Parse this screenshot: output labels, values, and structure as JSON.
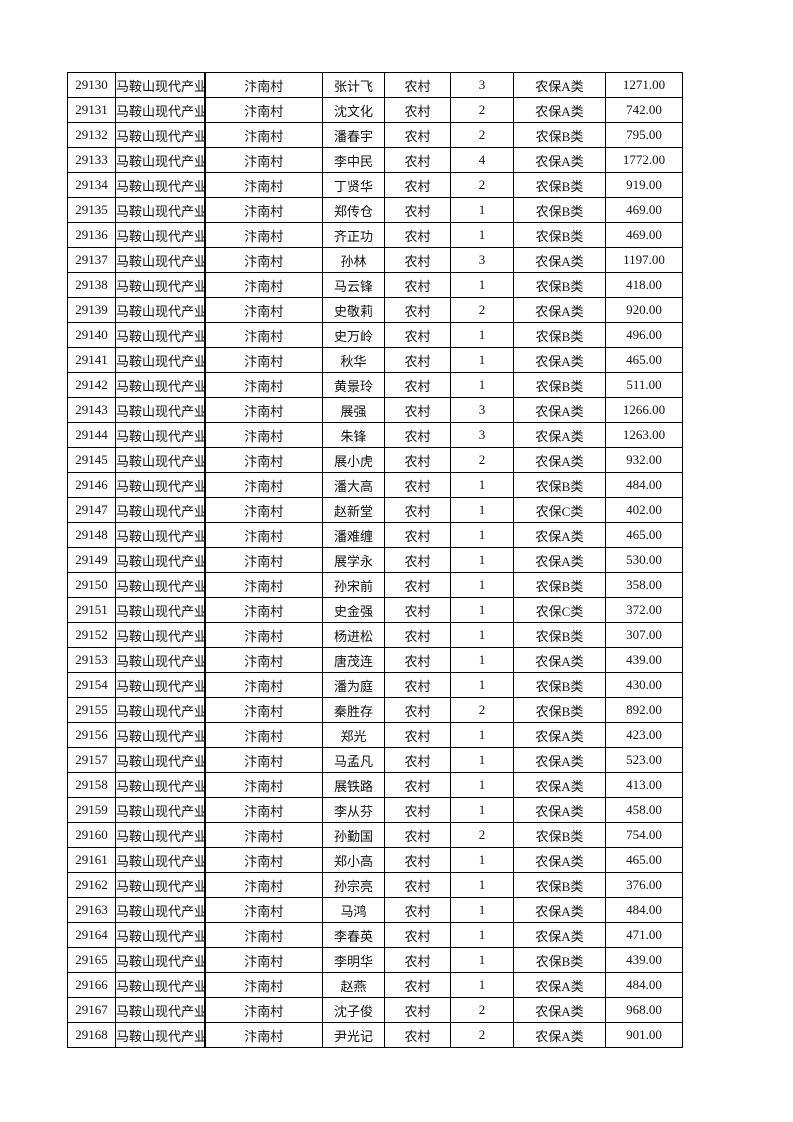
{
  "table": {
    "rows": [
      [
        29130,
        "马鞍山现代产业",
        "汴南村",
        "张计飞",
        "农村",
        3,
        "农保A类",
        "1271.00"
      ],
      [
        29131,
        "马鞍山现代产业",
        "汴南村",
        "沈文化",
        "农村",
        2,
        "农保A类",
        "742.00"
      ],
      [
        29132,
        "马鞍山现代产业",
        "汴南村",
        "潘春宇",
        "农村",
        2,
        "农保B类",
        "795.00"
      ],
      [
        29133,
        "马鞍山现代产业",
        "汴南村",
        "李中民",
        "农村",
        4,
        "农保A类",
        "1772.00"
      ],
      [
        29134,
        "马鞍山现代产业",
        "汴南村",
        "丁贤华",
        "农村",
        2,
        "农保B类",
        "919.00"
      ],
      [
        29135,
        "马鞍山现代产业",
        "汴南村",
        "郑传仓",
        "农村",
        1,
        "农保B类",
        "469.00"
      ],
      [
        29136,
        "马鞍山现代产业",
        "汴南村",
        "齐正功",
        "农村",
        1,
        "农保B类",
        "469.00"
      ],
      [
        29137,
        "马鞍山现代产业",
        "汴南村",
        "孙林",
        "农村",
        3,
        "农保A类",
        "1197.00"
      ],
      [
        29138,
        "马鞍山现代产业",
        "汴南村",
        "马云锋",
        "农村",
        1,
        "农保B类",
        "418.00"
      ],
      [
        29139,
        "马鞍山现代产业",
        "汴南村",
        "史敬莉",
        "农村",
        2,
        "农保A类",
        "920.00"
      ],
      [
        29140,
        "马鞍山现代产业",
        "汴南村",
        "史万岭",
        "农村",
        1,
        "农保B类",
        "496.00"
      ],
      [
        29141,
        "马鞍山现代产业",
        "汴南村",
        "秋华",
        "农村",
        1,
        "农保A类",
        "465.00"
      ],
      [
        29142,
        "马鞍山现代产业",
        "汴南村",
        "黄景玲",
        "农村",
        1,
        "农保B类",
        "511.00"
      ],
      [
        29143,
        "马鞍山现代产业",
        "汴南村",
        "展强",
        "农村",
        3,
        "农保A类",
        "1266.00"
      ],
      [
        29144,
        "马鞍山现代产业",
        "汴南村",
        "朱锋",
        "农村",
        3,
        "农保A类",
        "1263.00"
      ],
      [
        29145,
        "马鞍山现代产业",
        "汴南村",
        "展小虎",
        "农村",
        2,
        "农保A类",
        "932.00"
      ],
      [
        29146,
        "马鞍山现代产业",
        "汴南村",
        "潘大高",
        "农村",
        1,
        "农保B类",
        "484.00"
      ],
      [
        29147,
        "马鞍山现代产业",
        "汴南村",
        "赵新堂",
        "农村",
        1,
        "农保C类",
        "402.00"
      ],
      [
        29148,
        "马鞍山现代产业",
        "汴南村",
        "潘难缠",
        "农村",
        1,
        "农保A类",
        "465.00"
      ],
      [
        29149,
        "马鞍山现代产业",
        "汴南村",
        "展学永",
        "农村",
        1,
        "农保A类",
        "530.00"
      ],
      [
        29150,
        "马鞍山现代产业",
        "汴南村",
        "孙宋前",
        "农村",
        1,
        "农保B类",
        "358.00"
      ],
      [
        29151,
        "马鞍山现代产业",
        "汴南村",
        "史金强",
        "农村",
        1,
        "农保C类",
        "372.00"
      ],
      [
        29152,
        "马鞍山现代产业",
        "汴南村",
        "杨进松",
        "农村",
        1,
        "农保B类",
        "307.00"
      ],
      [
        29153,
        "马鞍山现代产业",
        "汴南村",
        "唐茂连",
        "农村",
        1,
        "农保A类",
        "439.00"
      ],
      [
        29154,
        "马鞍山现代产业",
        "汴南村",
        "潘为庭",
        "农村",
        1,
        "农保B类",
        "430.00"
      ],
      [
        29155,
        "马鞍山现代产业",
        "汴南村",
        "秦胜存",
        "农村",
        2,
        "农保B类",
        "892.00"
      ],
      [
        29156,
        "马鞍山现代产业",
        "汴南村",
        "郑光",
        "农村",
        1,
        "农保A类",
        "423.00"
      ],
      [
        29157,
        "马鞍山现代产业",
        "汴南村",
        "马孟凡",
        "农村",
        1,
        "农保A类",
        "523.00"
      ],
      [
        29158,
        "马鞍山现代产业",
        "汴南村",
        "展铁路",
        "农村",
        1,
        "农保A类",
        "413.00"
      ],
      [
        29159,
        "马鞍山现代产业",
        "汴南村",
        "李从芬",
        "农村",
        1,
        "农保A类",
        "458.00"
      ],
      [
        29160,
        "马鞍山现代产业",
        "汴南村",
        "孙勤国",
        "农村",
        2,
        "农保B类",
        "754.00"
      ],
      [
        29161,
        "马鞍山现代产业",
        "汴南村",
        "郑小高",
        "农村",
        1,
        "农保A类",
        "465.00"
      ],
      [
        29162,
        "马鞍山现代产业",
        "汴南村",
        "孙宗亮",
        "农村",
        1,
        "农保B类",
        "376.00"
      ],
      [
        29163,
        "马鞍山现代产业",
        "汴南村",
        "马鸿",
        "农村",
        1,
        "农保A类",
        "484.00"
      ],
      [
        29164,
        "马鞍山现代产业",
        "汴南村",
        "李春英",
        "农村",
        1,
        "农保A类",
        "471.00"
      ],
      [
        29165,
        "马鞍山现代产业",
        "汴南村",
        "李明华",
        "农村",
        1,
        "农保B类",
        "439.00"
      ],
      [
        29166,
        "马鞍山现代产业",
        "汴南村",
        "赵燕",
        "农村",
        1,
        "农保A类",
        "484.00"
      ],
      [
        29167,
        "马鞍山现代产业",
        "汴南村",
        "沈子俊",
        "农村",
        2,
        "农保A类",
        "968.00"
      ],
      [
        29168,
        "马鞍山现代产业",
        "汴南村",
        "尹光记",
        "农村",
        2,
        "农保A类",
        "901.00"
      ]
    ]
  }
}
